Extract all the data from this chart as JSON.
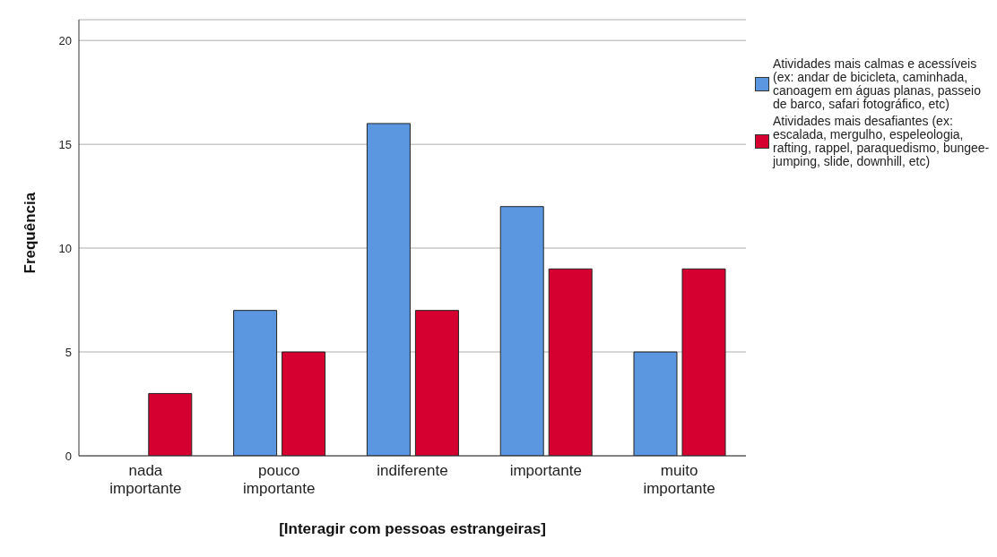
{
  "chart_data": {
    "type": "bar",
    "xlabel": "[Interagir com pessoas estrangeiras]",
    "ylabel": "Frequência",
    "categories": [
      "nada importante",
      "pouco importante",
      "indiferente",
      "importante",
      "muito importante"
    ],
    "series": [
      {
        "name": "Atividades mais calmas e acessíveis (ex: andar de bicicleta, caminhada, canoagem em águas planas, passeio de barco, safari fotográfico, etc)",
        "color": "#5a97e0",
        "values": [
          0,
          7,
          16,
          12,
          5
        ]
      },
      {
        "name": "Atividades mais desafiantes (ex: escalada, mergulho, espeleologia, rafting, rappel, paraquedismo, bungee-jumping, slide, downhill, etc)",
        "color": "#d5002f",
        "values": [
          3,
          5,
          7,
          9,
          9
        ]
      }
    ],
    "ylim": [
      0,
      21
    ],
    "yticks": [
      0,
      5,
      10,
      15,
      20
    ],
    "grid": "y",
    "legend": "top right"
  }
}
